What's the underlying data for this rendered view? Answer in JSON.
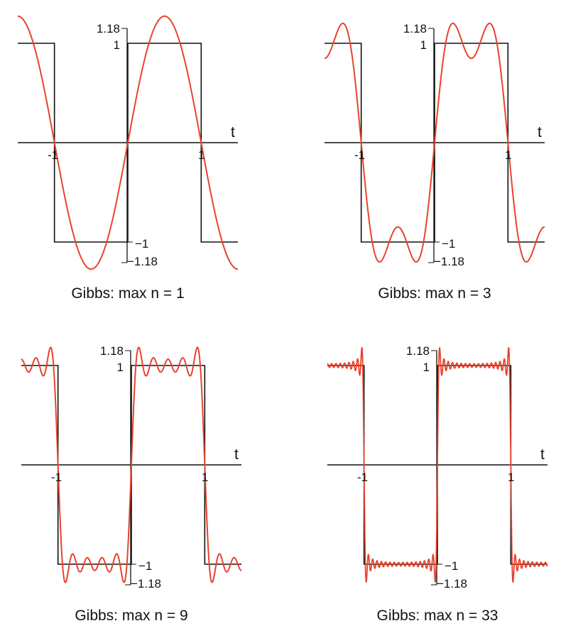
{
  "chart_data": [
    {
      "type": "line",
      "caption": "Gibbs: max n = 1",
      "max_n": 1,
      "xlabel": "t",
      "x_tick_labels": [
        "-1",
        "1"
      ],
      "y_tick_labels_top": [
        "1.18",
        "1"
      ],
      "y_tick_labels_bottom": [
        "−1",
        "−1.18"
      ],
      "xlim": [
        -1.5,
        1.5
      ],
      "ylim": [
        -1.18,
        1.18
      ],
      "series": [
        {
          "kind": "square wave",
          "color": "#111111"
        },
        {
          "kind": "partial Fourier sum",
          "color": "#e8432d"
        }
      ]
    },
    {
      "type": "line",
      "caption": "Gibbs: max n = 3",
      "max_n": 3,
      "xlabel": "t",
      "x_tick_labels": [
        "-1",
        "1"
      ],
      "y_tick_labels_top": [
        "1.18",
        "1"
      ],
      "y_tick_labels_bottom": [
        "−1",
        "−1.18"
      ],
      "xlim": [
        -1.5,
        1.5
      ],
      "ylim": [
        -1.18,
        1.18
      ],
      "series": [
        {
          "kind": "square wave",
          "color": "#111111"
        },
        {
          "kind": "partial Fourier sum",
          "color": "#e8432d"
        }
      ]
    },
    {
      "type": "line",
      "caption": "Gibbs: max n = 9",
      "max_n": 9,
      "xlabel": "t",
      "x_tick_labels": [
        "-1",
        "1"
      ],
      "y_tick_labels_top": [
        "1.18",
        "1"
      ],
      "y_tick_labels_bottom": [
        "−1",
        "−1.18"
      ],
      "xlim": [
        -1.5,
        1.5
      ],
      "ylim": [
        -1.18,
        1.18
      ],
      "series": [
        {
          "kind": "square wave",
          "color": "#111111"
        },
        {
          "kind": "partial Fourier sum",
          "color": "#e8432d"
        }
      ]
    },
    {
      "type": "line",
      "caption": "Gibbs: max n = 33",
      "max_n": 33,
      "xlabel": "t",
      "x_tick_labels": [
        "-1",
        "1"
      ],
      "y_tick_labels_top": [
        "1.18",
        "1"
      ],
      "y_tick_labels_bottom": [
        "−1",
        "−1.18"
      ],
      "xlim": [
        -1.5,
        1.5
      ],
      "ylim": [
        -1.18,
        1.18
      ],
      "series": [
        {
          "kind": "square wave",
          "color": "#111111"
        },
        {
          "kind": "partial Fourier sum",
          "color": "#e8432d"
        }
      ]
    }
  ]
}
